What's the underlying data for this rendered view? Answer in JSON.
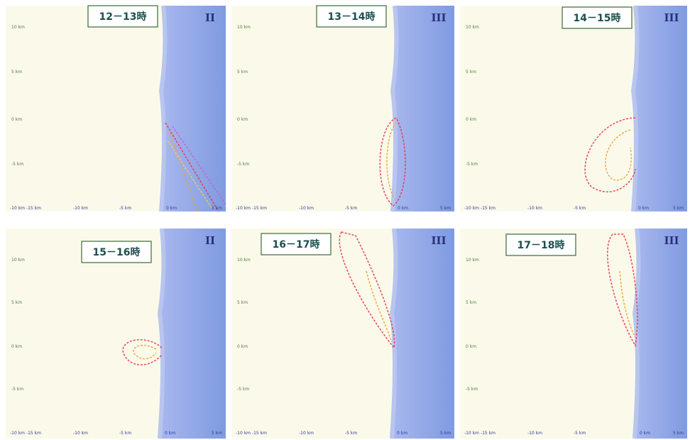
{
  "panels": [
    {
      "time": "12－13時",
      "class": "II",
      "y_labels": [
        "10 km",
        "5 km",
        "0 km",
        "-5 km"
      ],
      "x_labels": [
        "-10 km -15 km",
        "-10 km",
        "-5 km",
        "0 km",
        "5 km"
      ]
    },
    {
      "time": "13－14時",
      "class": "III",
      "y_labels": [
        "10 km",
        "5 km",
        "0 km",
        "-5 km"
      ],
      "x_labels": [
        "-10 km -15 km",
        "-10 km",
        "-5 km",
        "0 km",
        "5 km"
      ]
    },
    {
      "time": "14－15時",
      "class": "III",
      "y_labels": [
        "10 km",
        "5 km",
        "0 km",
        "-5 km"
      ],
      "x_labels": [
        "-10 km -15 km",
        "-10 km",
        "-5 km",
        "0 km",
        "5 km"
      ]
    },
    {
      "time": "15－16時",
      "class": "II",
      "y_labels": [
        "10 km",
        "5 km",
        "0 km",
        "-5 km"
      ],
      "x_labels": [
        "-10 km -15 km",
        "-10 km",
        "-5 km",
        "0 km",
        "5 km"
      ]
    },
    {
      "time": "16－17時",
      "class": "III",
      "y_labels": [
        "10 km",
        "5 km",
        "0 km",
        "-5 km"
      ],
      "x_labels": [
        "-10 km -15 km",
        "-10 km",
        "-5 km",
        "0 km",
        "5 km"
      ]
    },
    {
      "time": "17－18時",
      "class": "III",
      "y_labels": [
        "10 km",
        "5 km",
        "0 km",
        "-5 km"
      ],
      "x_labels": [
        "-10 km -15 km",
        "-10 km",
        "-5 km",
        "0 km",
        "5 km"
      ]
    }
  ]
}
